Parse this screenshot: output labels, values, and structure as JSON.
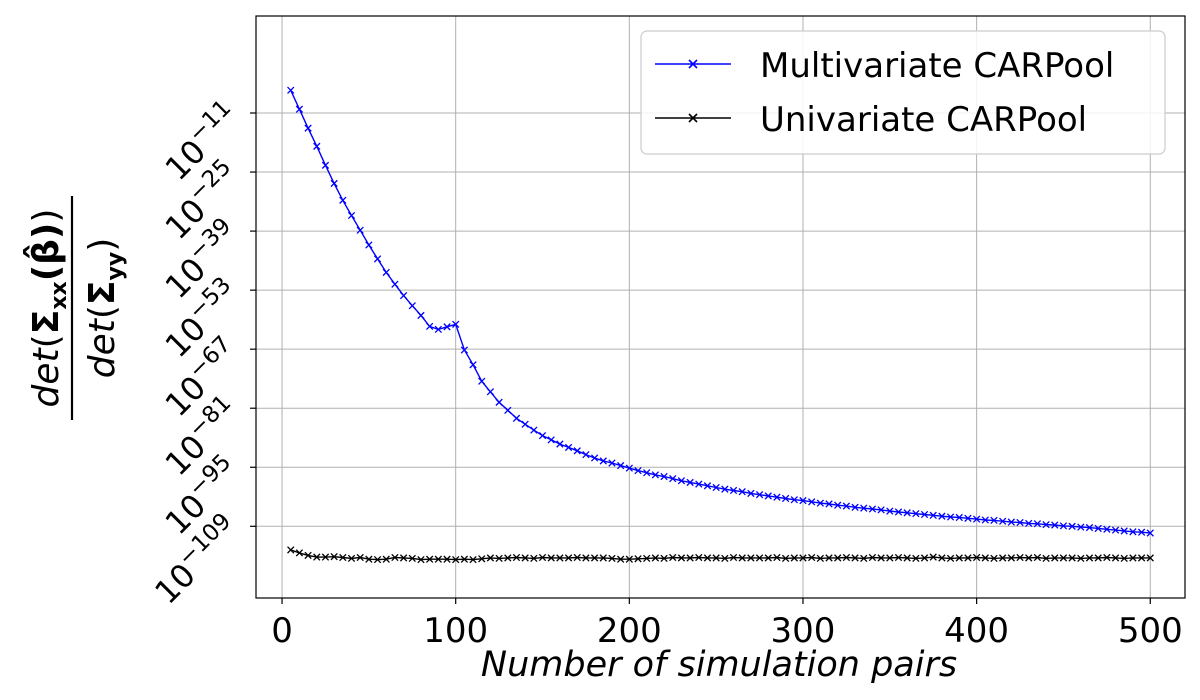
{
  "chart_data": {
    "type": "line",
    "title": "",
    "xlabel": "Number of simulation pairs",
    "ylabel": {
      "numerator": {
        "fn": "det",
        "symbol": "Σ",
        "sub": "xx",
        "arg": "(β̂)"
      },
      "denominator": {
        "fn": "det",
        "symbol": "Σ",
        "sub": "yy"
      }
    },
    "xlim": [
      -15,
      520
    ],
    "ylim_log10": [
      -126,
      12
    ],
    "y_scale": "log",
    "x_ticks": [
      0,
      100,
      200,
      300,
      400,
      500
    ],
    "x_tick_labels": [
      "0",
      "100",
      "200",
      "300",
      "400",
      "500"
    ],
    "y_ticks_log10": [
      -11,
      -25,
      -39,
      -53,
      -67,
      -81,
      -95,
      -109
    ],
    "y_tick_base": "10",
    "y_tick_exponents": [
      "−11",
      "−25",
      "−39",
      "−53",
      "−67",
      "−81",
      "−95",
      "−109"
    ],
    "grid": true,
    "legend_position": "top-right",
    "series": [
      {
        "name": "Multivariate CARPool",
        "color": "#0000ff",
        "marker": "x",
        "x": [
          5,
          10,
          15,
          20,
          25,
          30,
          35,
          40,
          45,
          50,
          55,
          60,
          65,
          70,
          75,
          80,
          85,
          90,
          95,
          100,
          105,
          110,
          115,
          120,
          125,
          130,
          135,
          140,
          145,
          150,
          155,
          160,
          165,
          170,
          175,
          180,
          185,
          190,
          195,
          200,
          205,
          210,
          215,
          220,
          225,
          230,
          235,
          240,
          245,
          250,
          255,
          260,
          265,
          270,
          275,
          280,
          285,
          290,
          295,
          300,
          305,
          310,
          315,
          320,
          325,
          330,
          335,
          340,
          345,
          350,
          355,
          360,
          365,
          370,
          375,
          380,
          385,
          390,
          395,
          400,
          405,
          410,
          415,
          420,
          425,
          430,
          435,
          440,
          445,
          450,
          455,
          460,
          465,
          470,
          475,
          480,
          485,
          490,
          495,
          500
        ],
        "log10_y": [
          -5.6,
          -10.1,
          -14.6,
          -18.9,
          -23.4,
          -27.7,
          -31.7,
          -35.3,
          -38.8,
          -42.3,
          -45.6,
          -48.8,
          -51.6,
          -54.3,
          -56.7,
          -59.0,
          -61.6,
          -62.3,
          -61.7,
          -61.1,
          -67.2,
          -70.7,
          -74.6,
          -77.1,
          -79.6,
          -81.5,
          -83.4,
          -84.8,
          -86.2,
          -87.5,
          -88.5,
          -89.5,
          -90.3,
          -91.1,
          -92.0,
          -92.8,
          -93.5,
          -94.0,
          -94.6,
          -95.2,
          -95.8,
          -96.3,
          -96.8,
          -97.2,
          -97.7,
          -98.2,
          -98.6,
          -99.0,
          -99.4,
          -99.8,
          -100.2,
          -100.5,
          -100.8,
          -101.2,
          -101.5,
          -101.8,
          -102.1,
          -102.4,
          -102.7,
          -102.9,
          -103.2,
          -103.5,
          -103.7,
          -104.0,
          -104.2,
          -104.5,
          -104.7,
          -104.9,
          -105.1,
          -105.4,
          -105.6,
          -105.8,
          -106.0,
          -106.2,
          -106.4,
          -106.6,
          -106.8,
          -106.9,
          -107.1,
          -107.3,
          -107.5,
          -107.6,
          -107.8,
          -108.0,
          -108.1,
          -108.3,
          -108.4,
          -108.6,
          -108.7,
          -108.9,
          -109.0,
          -109.2,
          -109.3,
          -109.5,
          -109.7,
          -109.9,
          -110.1,
          -110.3,
          -110.4,
          -110.6
        ]
      },
      {
        "name": "Univariate CARPool",
        "color": "#000000",
        "marker": "x",
        "x": [
          5,
          10,
          15,
          20,
          25,
          30,
          35,
          40,
          45,
          50,
          55,
          60,
          65,
          70,
          75,
          80,
          85,
          90,
          95,
          100,
          105,
          110,
          115,
          120,
          125,
          130,
          135,
          140,
          145,
          150,
          155,
          160,
          165,
          170,
          175,
          180,
          185,
          190,
          195,
          200,
          205,
          210,
          215,
          220,
          225,
          230,
          235,
          240,
          245,
          250,
          255,
          260,
          265,
          270,
          275,
          280,
          285,
          290,
          295,
          300,
          305,
          310,
          315,
          320,
          325,
          330,
          335,
          340,
          345,
          350,
          355,
          360,
          365,
          370,
          375,
          380,
          385,
          390,
          395,
          400,
          405,
          410,
          415,
          420,
          425,
          430,
          435,
          440,
          445,
          450,
          455,
          460,
          465,
          470,
          475,
          480,
          485,
          490,
          495,
          500
        ],
        "log10_y": [
          -114.6,
          -115.3,
          -115.9,
          -116.3,
          -116.3,
          -116.2,
          -116.4,
          -116.6,
          -116.4,
          -116.8,
          -116.9,
          -116.8,
          -116.4,
          -116.5,
          -116.6,
          -116.9,
          -116.8,
          -116.8,
          -116.8,
          -116.9,
          -116.8,
          -116.9,
          -116.7,
          -116.5,
          -116.6,
          -116.5,
          -116.4,
          -116.5,
          -116.6,
          -116.4,
          -116.5,
          -116.5,
          -116.5,
          -116.4,
          -116.5,
          -116.5,
          -116.5,
          -116.6,
          -116.8,
          -116.8,
          -116.7,
          -116.6,
          -116.5,
          -116.6,
          -116.4,
          -116.5,
          -116.5,
          -116.4,
          -116.5,
          -116.5,
          -116.6,
          -116.4,
          -116.5,
          -116.5,
          -116.5,
          -116.5,
          -116.4,
          -116.6,
          -116.5,
          -116.5,
          -116.4,
          -116.6,
          -116.5,
          -116.5,
          -116.4,
          -116.5,
          -116.6,
          -116.4,
          -116.5,
          -116.5,
          -116.4,
          -116.5,
          -116.6,
          -116.5,
          -116.3,
          -116.5,
          -116.6,
          -116.5,
          -116.5,
          -116.4,
          -116.5,
          -116.6,
          -116.5,
          -116.5,
          -116.4,
          -116.5,
          -116.4,
          -116.6,
          -116.5,
          -116.5,
          -116.5,
          -116.6,
          -116.5,
          -116.5,
          -116.4,
          -116.5,
          -116.6,
          -116.5,
          -116.5,
          -116.5
        ]
      }
    ]
  }
}
